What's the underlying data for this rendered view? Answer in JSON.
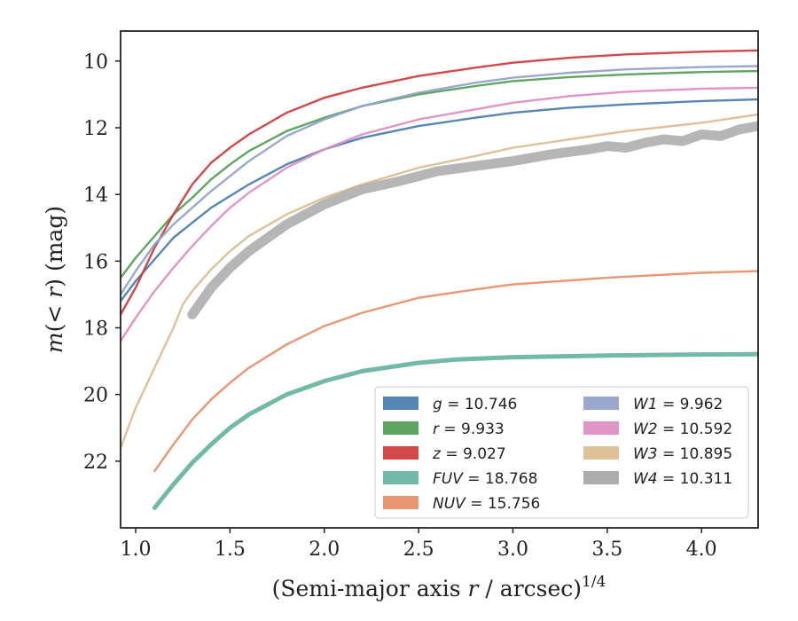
{
  "chart_data": {
    "type": "line",
    "title": "",
    "xlabel": "(Semi-major axis r / arcsec)",
    "xlabel_var": "r",
    "xlabel_pre": "(Semi-major axis ",
    "xlabel_post": " / arcsec)",
    "xlabel_sup": "1/4",
    "ylabel": "m(< r) (mag)",
    "ylabel_var_m": "m",
    "ylabel_mid": "(< ",
    "ylabel_var_r": "r",
    "ylabel_post": ") (mag)",
    "xlim": [
      0.92,
      4.3
    ],
    "ylim": [
      24.0,
      9.1
    ],
    "y_inverted": true,
    "xticks": [
      1.0,
      1.5,
      2.0,
      2.5,
      3.0,
      3.5,
      4.0
    ],
    "xtick_labels": [
      "1.0",
      "1.5",
      "2.0",
      "2.5",
      "3.0",
      "3.5",
      "4.0"
    ],
    "yticks": [
      10,
      12,
      14,
      16,
      18,
      20,
      22
    ],
    "ytick_labels": [
      "10",
      "12",
      "14",
      "16",
      "18",
      "20",
      "22"
    ],
    "grid": false,
    "legend": {
      "placement": "lower-right",
      "columns": 2
    },
    "series": [
      {
        "key": "g",
        "name": "g",
        "value_text": " = 10.746",
        "color": "#4c7fb0",
        "x": [
          0.92,
          1.0,
          1.1,
          1.2,
          1.3,
          1.4,
          1.5,
          1.6,
          1.8,
          2.0,
          2.2,
          2.5,
          2.8,
          3.0,
          3.3,
          3.6,
          4.0,
          4.3
        ],
        "y": [
          17.2,
          16.6,
          15.95,
          15.3,
          14.85,
          14.4,
          14.05,
          13.7,
          13.1,
          12.65,
          12.3,
          11.95,
          11.7,
          11.55,
          11.4,
          11.3,
          11.2,
          11.15
        ]
      },
      {
        "key": "r",
        "name": "r",
        "value_text": " = 9.933",
        "color": "#55a05a",
        "x": [
          0.92,
          1.0,
          1.1,
          1.2,
          1.3,
          1.4,
          1.5,
          1.6,
          1.8,
          2.0,
          2.2,
          2.5,
          2.8,
          3.0,
          3.3,
          3.6,
          4.0,
          4.3
        ],
        "y": [
          16.5,
          15.9,
          15.25,
          14.6,
          14.1,
          13.55,
          13.1,
          12.7,
          12.1,
          11.7,
          11.35,
          11.0,
          10.75,
          10.6,
          10.48,
          10.4,
          10.33,
          10.3
        ]
      },
      {
        "key": "z",
        "name": "z",
        "value_text": " = 9.027",
        "color": "#cf3f3f",
        "x": [
          0.92,
          1.0,
          1.1,
          1.2,
          1.3,
          1.4,
          1.5,
          1.6,
          1.8,
          2.0,
          2.2,
          2.5,
          2.8,
          3.0,
          3.3,
          3.6,
          4.0,
          4.3
        ],
        "y": [
          17.6,
          16.8,
          15.6,
          14.6,
          13.7,
          13.05,
          12.6,
          12.2,
          11.55,
          11.1,
          10.8,
          10.45,
          10.2,
          10.05,
          9.9,
          9.8,
          9.72,
          9.68
        ]
      },
      {
        "key": "FUV",
        "name": "FUV",
        "value_text": " = 18.768",
        "color": "#6bb5a2",
        "x": [
          1.1,
          1.2,
          1.3,
          1.4,
          1.5,
          1.6,
          1.8,
          2.0,
          2.2,
          2.5,
          2.7,
          3.0,
          3.5,
          4.0,
          4.3
        ],
        "y": [
          23.4,
          22.7,
          22.05,
          21.5,
          21.0,
          20.6,
          20.0,
          19.6,
          19.3,
          19.05,
          18.95,
          18.88,
          18.83,
          18.8,
          18.79
        ]
      },
      {
        "key": "NUV",
        "name": "NUV",
        "value_text": " = 15.756",
        "color": "#e8906c",
        "x": [
          1.1,
          1.2,
          1.3,
          1.4,
          1.5,
          1.6,
          1.8,
          2.0,
          2.2,
          2.5,
          2.8,
          3.0,
          3.5,
          4.0,
          4.3
        ],
        "y": [
          22.3,
          21.5,
          20.75,
          20.15,
          19.65,
          19.2,
          18.5,
          17.95,
          17.55,
          17.1,
          16.85,
          16.7,
          16.5,
          16.35,
          16.3
        ]
      },
      {
        "key": "W1",
        "name": "W1",
        "value_text": " = 9.962",
        "color": "#93a3c9",
        "x": [
          0.92,
          1.0,
          1.1,
          1.2,
          1.3,
          1.4,
          1.5,
          1.6,
          1.8,
          2.0,
          2.2,
          2.5,
          2.8,
          3.0,
          3.3,
          3.6,
          4.0,
          4.3
        ],
        "y": [
          17.0,
          16.3,
          15.5,
          14.9,
          14.4,
          13.9,
          13.45,
          13.0,
          12.25,
          11.75,
          11.35,
          10.95,
          10.65,
          10.5,
          10.35,
          10.25,
          10.18,
          10.15
        ]
      },
      {
        "key": "W2",
        "name": "W2",
        "value_text": " = 10.592",
        "color": "#de8fc4",
        "x": [
          0.92,
          1.0,
          1.1,
          1.2,
          1.3,
          1.4,
          1.5,
          1.6,
          1.8,
          2.0,
          2.2,
          2.5,
          2.8,
          3.0,
          3.3,
          3.6,
          4.0,
          4.3
        ],
        "y": [
          18.4,
          17.7,
          16.9,
          16.2,
          15.55,
          14.95,
          14.4,
          13.95,
          13.2,
          12.65,
          12.2,
          11.75,
          11.45,
          11.25,
          11.05,
          10.92,
          10.83,
          10.8
        ]
      },
      {
        "key": "W3",
        "name": "W3",
        "value_text": " = 10.895",
        "color": "#dcbd93",
        "x": [
          0.92,
          1.0,
          1.1,
          1.2,
          1.25,
          1.3,
          1.4,
          1.5,
          1.6,
          1.8,
          2.0,
          2.2,
          2.5,
          2.8,
          3.0,
          3.3,
          3.6,
          4.0,
          4.3
        ],
        "y": [
          21.6,
          20.4,
          19.2,
          18.0,
          17.3,
          16.9,
          16.25,
          15.7,
          15.25,
          14.6,
          14.1,
          13.7,
          13.2,
          12.85,
          12.6,
          12.35,
          12.1,
          11.85,
          11.6
        ]
      },
      {
        "key": "W4",
        "name": "W4",
        "value_text": " = 10.311",
        "color": "#a9a9a9",
        "x": [
          1.3,
          1.4,
          1.5,
          1.6,
          1.8,
          2.0,
          2.2,
          2.4,
          2.6,
          2.8,
          3.0,
          3.2,
          3.4,
          3.5,
          3.6,
          3.7,
          3.8,
          3.9,
          4.0,
          4.1,
          4.2,
          4.3
        ],
        "y": [
          17.6,
          16.8,
          16.2,
          15.7,
          14.9,
          14.3,
          13.85,
          13.6,
          13.3,
          13.15,
          13.0,
          12.8,
          12.65,
          12.55,
          12.6,
          12.45,
          12.35,
          12.4,
          12.2,
          12.25,
          12.05,
          11.95
        ]
      }
    ]
  }
}
